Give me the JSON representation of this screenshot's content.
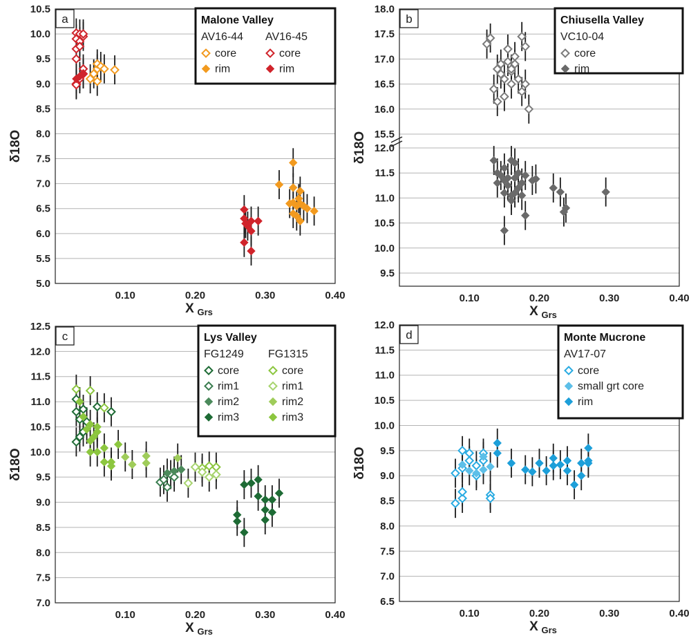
{
  "chart_data": [
    {
      "id": "a",
      "type": "scatter",
      "panel_label": "a",
      "xlabel": "X",
      "xlabel_sub": "Grs",
      "ylabel": "δ18O",
      "xlim": [
        0,
        0.4
      ],
      "ylim": [
        5.0,
        10.5
      ],
      "xticks": [
        "0.10",
        "0.20",
        "0.30",
        "0.40"
      ],
      "yticks": [
        "5.0",
        "5.5",
        "6.0",
        "6.5",
        "7.0",
        "7.5",
        "8.0",
        "8.5",
        "9.0",
        "9.5",
        "10.0",
        "10.5"
      ],
      "legend": {
        "title": "Malone Valley",
        "placement": "top-right",
        "columns": [
          "AV16-44",
          "AV16-45"
        ],
        "rows": [
          "core",
          "rim"
        ]
      },
      "series": [
        {
          "name": "core",
          "sample": "AV16-44",
          "color": "#f29a1f",
          "filled": false,
          "x": [
            0.05,
            0.055,
            0.06,
            0.06,
            0.065,
            0.07,
            0.085,
            0.06
          ],
          "y": [
            9.1,
            9.2,
            9.3,
            9.4,
            9.35,
            9.3,
            9.28,
            9.05
          ]
        },
        {
          "name": "rim",
          "sample": "AV16-44",
          "color": "#f29a1f",
          "filled": true,
          "x": [
            0.32,
            0.335,
            0.34,
            0.34,
            0.345,
            0.35,
            0.35,
            0.34,
            0.355,
            0.36,
            0.37,
            0.345,
            0.35,
            0.34,
            0.348
          ],
          "y": [
            6.98,
            6.6,
            6.92,
            7.42,
            6.55,
            6.85,
            6.6,
            6.4,
            6.55,
            6.5,
            6.45,
            6.35,
            6.25,
            6.62,
            6.7
          ]
        },
        {
          "name": "core",
          "sample": "AV16-45",
          "color": "#d0242b",
          "filled": false,
          "x": [
            0.03,
            0.03,
            0.035,
            0.035,
            0.04,
            0.04,
            0.03,
            0.035,
            0.03,
            0.04,
            0.03,
            0.035,
            0.03,
            0.04
          ],
          "y": [
            10.02,
            9.9,
            10.0,
            9.85,
            9.95,
            10.0,
            9.7,
            9.75,
            9.5,
            9.3,
            9.0,
            9.1,
            8.98,
            9.2
          ]
        },
        {
          "name": "rim",
          "sample": "AV16-45",
          "color": "#d0242b",
          "filled": true,
          "x": [
            0.03,
            0.035,
            0.04,
            0.27,
            0.27,
            0.272,
            0.275,
            0.27,
            0.28,
            0.28,
            0.29,
            0.28
          ],
          "y": [
            9.1,
            9.15,
            9.2,
            6.48,
            6.3,
            6.2,
            6.15,
            5.82,
            6.25,
            6.05,
            6.25,
            5.65
          ]
        }
      ]
    },
    {
      "id": "b",
      "type": "scatter",
      "panel_label": "b",
      "xlabel": "X",
      "xlabel_sub": "Grs",
      "ylabel": "δ18O",
      "xlim": [
        0,
        0.4
      ],
      "ylim_lower": [
        9.5,
        12.0
      ],
      "ylim_upper": [
        15.5,
        18.0
      ],
      "axis_break": true,
      "xticks": [
        "0.10",
        "0.20",
        "0.30",
        "0.40"
      ],
      "yticks": [
        "9.5",
        "10.0",
        "10.5",
        "11.0",
        "11.5",
        "12.0",
        "15.5",
        "16.0",
        "16.5",
        "17.0",
        "17.5",
        "18.0"
      ],
      "legend": {
        "title": "Chiusella Valley",
        "placement": "top-right",
        "columns": [
          "VC10-04"
        ],
        "rows": [
          "core",
          "rim"
        ]
      },
      "series": [
        {
          "name": "core",
          "sample": "VC10-04",
          "color": "#7b7b7b",
          "filled": false,
          "x": [
            0.125,
            0.13,
            0.135,
            0.14,
            0.14,
            0.145,
            0.15,
            0.15,
            0.155,
            0.155,
            0.16,
            0.16,
            0.165,
            0.165,
            0.17,
            0.175,
            0.175,
            0.18,
            0.18,
            0.185,
            0.16,
            0.145
          ],
          "y": [
            17.3,
            17.42,
            16.4,
            16.8,
            16.15,
            16.7,
            16.6,
            16.25,
            16.95,
            17.2,
            16.75,
            16.5,
            17.05,
            16.9,
            16.6,
            17.45,
            16.35,
            17.25,
            16.5,
            16.0,
            16.8,
            16.9
          ]
        },
        {
          "name": "rim",
          "sample": "VC10-04",
          "color": "#6a6a6a",
          "filled": true,
          "x": [
            0.135,
            0.14,
            0.14,
            0.145,
            0.15,
            0.15,
            0.155,
            0.155,
            0.16,
            0.16,
            0.165,
            0.165,
            0.17,
            0.17,
            0.175,
            0.18,
            0.15,
            0.16,
            0.165,
            0.18,
            0.19,
            0.195,
            0.22,
            0.23,
            0.235,
            0.238,
            0.295,
            0.15,
            0.175
          ],
          "y": [
            11.75,
            11.5,
            11.3,
            11.45,
            11.6,
            11.1,
            11.4,
            11.25,
            11.75,
            11.05,
            11.7,
            11.4,
            11.2,
            11.5,
            11.3,
            11.45,
            10.35,
            10.95,
            11.1,
            10.65,
            11.35,
            11.38,
            11.2,
            11.12,
            10.72,
            10.8,
            11.12,
            11.35,
            11.05
          ]
        }
      ]
    },
    {
      "id": "c",
      "type": "scatter",
      "panel_label": "c",
      "xlabel": "X",
      "xlabel_sub": "Grs",
      "ylabel": "δ18O",
      "xlim": [
        0,
        0.4
      ],
      "ylim": [
        7.0,
        12.5
      ],
      "xticks": [
        "0.10",
        "0.20",
        "0.30",
        "0.40"
      ],
      "yticks": [
        "7.0",
        "7.5",
        "8.0",
        "8.5",
        "9.0",
        "9.5",
        "10.0",
        "10.5",
        "11.0",
        "11.5",
        "12.0",
        "12.5"
      ],
      "legend": {
        "title": "Lys Valley",
        "placement": "top-right",
        "columns": [
          "FG1249",
          "FG1315"
        ],
        "rows": [
          "core",
          "rim1",
          "rim2",
          "rim3"
        ]
      },
      "series": [
        {
          "name": "core",
          "sample": "FG1249",
          "color": "#1e6b35",
          "filled": false,
          "x": [
            0.03,
            0.03,
            0.035,
            0.04,
            0.045,
            0.04,
            0.06,
            0.08,
            0.035,
            0.03
          ],
          "y": [
            11.05,
            10.8,
            10.65,
            10.85,
            10.6,
            10.4,
            10.9,
            10.8,
            10.3,
            10.2
          ]
        },
        {
          "name": "rim1",
          "sample": "FG1249",
          "color": "#3a7d4f",
          "filled": false,
          "x": [
            0.15,
            0.16,
            0.165,
            0.17,
            0.155
          ],
          "y": [
            9.4,
            9.3,
            9.55,
            9.5,
            9.45
          ]
        },
        {
          "name": "rim2",
          "sample": "FG1249",
          "color": "#4b8a5b",
          "filled": true,
          "x": [
            0.16,
            0.17,
            0.18
          ],
          "y": [
            9.58,
            9.62,
            9.65
          ]
        },
        {
          "name": "rim3",
          "sample": "FG1249",
          "color": "#1e6b35",
          "filled": true,
          "x": [
            0.26,
            0.26,
            0.27,
            0.27,
            0.28,
            0.29,
            0.29,
            0.3,
            0.3,
            0.31,
            0.31,
            0.32,
            0.3
          ],
          "y": [
            8.75,
            8.62,
            9.35,
            8.4,
            9.38,
            9.45,
            9.12,
            8.85,
            9.05,
            9.05,
            8.8,
            9.18,
            8.65
          ]
        },
        {
          "name": "core",
          "sample": "FG1315",
          "color": "#8cc63f",
          "filled": false,
          "x": [
            0.03,
            0.05,
            0.07,
            0.21,
            0.22,
            0.23
          ],
          "y": [
            11.25,
            11.22,
            10.88,
            9.68,
            9.72,
            9.7
          ]
        },
        {
          "name": "rim1",
          "sample": "FG1315",
          "color": "#a8d46f",
          "filled": false,
          "x": [
            0.19,
            0.2,
            0.21,
            0.22,
            0.23
          ],
          "y": [
            9.38,
            9.7,
            9.6,
            9.5,
            9.55
          ]
        },
        {
          "name": "rim2",
          "sample": "FG1315",
          "color": "#9fcc5a",
          "filled": true,
          "x": [
            0.1,
            0.11,
            0.13,
            0.13,
            0.175
          ],
          "y": [
            9.9,
            9.75,
            9.92,
            9.78,
            9.88
          ]
        },
        {
          "name": "rim3",
          "sample": "FG1315",
          "color": "#8cc63f",
          "filled": true,
          "x": [
            0.035,
            0.04,
            0.045,
            0.05,
            0.05,
            0.055,
            0.06,
            0.06,
            0.07,
            0.08,
            0.08,
            0.09,
            0.05,
            0.06,
            0.07
          ],
          "y": [
            11.0,
            10.7,
            10.45,
            10.55,
            10.0,
            10.3,
            10.5,
            10.4,
            10.08,
            9.8,
            9.72,
            10.15,
            10.22,
            10.0,
            9.8
          ]
        }
      ]
    },
    {
      "id": "d",
      "type": "scatter",
      "panel_label": "d",
      "xlabel": "X",
      "xlabel_sub": "Grs",
      "ylabel": "δ18O",
      "xlim": [
        0,
        0.4
      ],
      "ylim": [
        6.5,
        12.0
      ],
      "xticks": [
        "0.10",
        "0.20",
        "0.30",
        "0.40"
      ],
      "yticks": [
        "6.5",
        "7.0",
        "7.5",
        "8.0",
        "8.5",
        "9.0",
        "9.5",
        "10.0",
        "10.5",
        "11.0",
        "11.5",
        "12.0"
      ],
      "legend": {
        "title": "Monte Mucrone",
        "placement": "top-right",
        "columns": [
          "AV17-07"
        ],
        "rows": [
          "core",
          "small grt core",
          "rim"
        ]
      },
      "series": [
        {
          "name": "core",
          "sample": "AV17-07",
          "color": "#29abe2",
          "filled": false,
          "x": [
            0.08,
            0.08,
            0.09,
            0.09,
            0.09,
            0.1,
            0.1,
            0.11,
            0.11,
            0.12,
            0.12,
            0.13,
            0.13,
            0.09
          ],
          "y": [
            8.45,
            9.05,
            8.55,
            8.68,
            9.15,
            9.45,
            9.3,
            9.2,
            9.0,
            9.45,
            9.3,
            8.62,
            8.55,
            9.5
          ]
        },
        {
          "name": "small grt core",
          "sample": "AV17-07",
          "color": "#5dbfe8",
          "filled": true,
          "x": [
            0.09,
            0.1,
            0.11,
            0.12,
            0.12,
            0.13
          ],
          "y": [
            9.22,
            9.1,
            9.05,
            9.38,
            9.12,
            9.18
          ]
        },
        {
          "name": "rim",
          "sample": "AV17-07",
          "color": "#1d9fd9",
          "filled": true,
          "x": [
            0.14,
            0.14,
            0.16,
            0.18,
            0.19,
            0.2,
            0.21,
            0.22,
            0.22,
            0.23,
            0.24,
            0.24,
            0.25,
            0.26,
            0.26,
            0.27,
            0.27,
            0.27
          ],
          "y": [
            9.65,
            9.45,
            9.25,
            9.12,
            9.08,
            9.25,
            9.1,
            9.35,
            9.2,
            9.22,
            9.3,
            9.1,
            8.82,
            9.25,
            9.0,
            9.55,
            9.3,
            9.25
          ]
        }
      ]
    }
  ]
}
